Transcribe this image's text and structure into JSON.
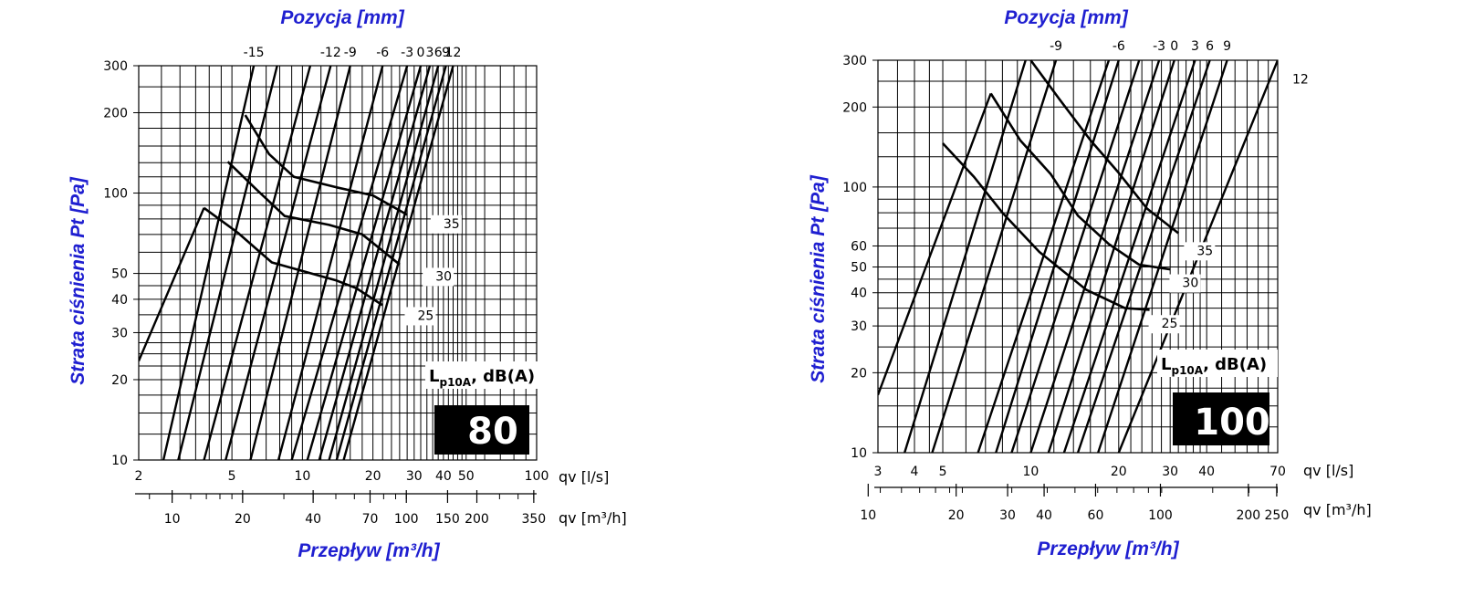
{
  "colors": {
    "title": "#1f1fd0",
    "lines": "#000000",
    "badge_bg": "#000000",
    "badge_text": "#ffffff"
  },
  "chart_data": [
    {
      "type": "line",
      "title": "Pozycja [mm]",
      "xlabel": "Przepływ [m³/h]",
      "ylabel": "Strata ciśnienia Pt [Pa]",
      "x_unit_ls": "qv [l/s]",
      "x_unit_m3h": "qv [m³/h]",
      "xlim_ls": [
        2,
        100
      ],
      "ylim": [
        10,
        300
      ],
      "x_scale": "log",
      "y_scale": "log",
      "grid": true,
      "x_ticks_ls": [
        "2",
        "5",
        "10",
        "20",
        "30",
        "40",
        "50",
        "100"
      ],
      "x_ticks_m3h": [
        "10",
        "20",
        "40",
        "70",
        "100",
        "150",
        "200",
        "350"
      ],
      "y_ticks": [
        "10",
        "20",
        "30",
        "40",
        "50",
        "100",
        "200",
        "300"
      ],
      "size": "80",
      "sound_label_main": "L",
      "sound_label_sub": "p10A",
      "sound_label_rest": ", dB(A)",
      "position_lines": [
        {
          "position": "-15",
          "x_at_y10": 2.55,
          "x_at_y300": 6.2,
          "label": true
        },
        {
          "position": "",
          "x_at_y10": 2.95,
          "x_at_y300": 7.8,
          "label": false
        },
        {
          "position": "",
          "x_at_y10": 3.8,
          "x_at_y300": 10.8,
          "label": false
        },
        {
          "position": "-12",
          "x_at_y10": 4.7,
          "x_at_y300": 13.2,
          "label": true
        },
        {
          "position": "-9",
          "x_at_y10": 6.0,
          "x_at_y300": 16.0,
          "label": true
        },
        {
          "position": "-6",
          "x_at_y10": 7.9,
          "x_at_y300": 22.0,
          "label": true
        },
        {
          "position": "-3",
          "x_at_y10": 9.0,
          "x_at_y300": 28.0,
          "label": true
        },
        {
          "position": "0",
          "x_at_y10": 10.5,
          "x_at_y300": 32.0,
          "label": true
        },
        {
          "position": "3",
          "x_at_y10": 11.8,
          "x_at_y300": 35.0,
          "label": true
        },
        {
          "position": "6",
          "x_at_y10": 13.0,
          "x_at_y300": 38.0,
          "label": true
        },
        {
          "position": "9",
          "x_at_y10": 14.0,
          "x_at_y300": 41.0,
          "label": true
        },
        {
          "position": "12",
          "x_at_y10": 15.0,
          "x_at_y300": 44.0,
          "label": true
        }
      ],
      "extra_line": {
        "x_start": 2.0,
        "y_start": 23.5,
        "x_end": 3.8,
        "y_end": 88
      },
      "sound_curves": [
        {
          "level": "35",
          "label_x": 40,
          "label_y": 74,
          "points": [
            [
              5.7,
              196
            ],
            [
              7.2,
              140
            ],
            [
              9.2,
              115
            ],
            [
              14,
              105
            ],
            [
              20,
              98
            ],
            [
              28,
              83
            ]
          ]
        },
        {
          "level": "30",
          "label_x": 37,
          "label_y": 47,
          "points": [
            [
              4.8,
              131
            ],
            [
              6.3,
              104
            ],
            [
              8.4,
              82
            ],
            [
              13,
              76
            ],
            [
              18,
              70
            ],
            [
              26,
              54
            ]
          ]
        },
        {
          "level": "25",
          "label_x": 31,
          "label_y": 33.5,
          "points": [
            [
              3.8,
              88
            ],
            [
              5.3,
              71
            ],
            [
              7.4,
              55
            ],
            [
              14,
              47
            ],
            [
              17,
              44
            ],
            [
              22,
              38
            ]
          ]
        }
      ]
    },
    {
      "type": "line",
      "title": "Pozycja [mm]",
      "xlabel": "Przepływ [m³/h]",
      "ylabel": "Strata ciśnienia Pt [Pa]",
      "x_unit_ls": "qv [l/s]",
      "x_unit_m3h": "qv [m³/h]",
      "xlim_ls": [
        3,
        70
      ],
      "ylim": [
        10,
        300
      ],
      "x_scale": "log",
      "y_scale": "log",
      "grid": true,
      "x_ticks_ls": [
        "3",
        "4",
        "5",
        "10",
        "20",
        "30",
        "40",
        "70"
      ],
      "x_ticks_m3h": [
        "10",
        "20",
        "30",
        "40",
        "60",
        "100",
        "200",
        "250"
      ],
      "y_ticks": [
        "10",
        "20",
        "30",
        "40",
        "50",
        "60",
        "100",
        "200",
        "300"
      ],
      "size": "100",
      "sound_label_main": "L",
      "sound_label_sub": "p10A",
      "sound_label_rest": ", dB(A)",
      "position_lines": [
        {
          "position": "",
          "x_at_y10": 3.7,
          "x_at_y300": 9.6,
          "label": false
        },
        {
          "position": "-9",
          "x_at_y10": 4.6,
          "x_at_y300": 12.2,
          "label": true
        },
        {
          "position": "",
          "x_at_y10": 6.6,
          "x_at_y300": 18.5,
          "label": false
        },
        {
          "position": "-6",
          "x_at_y10": 7.6,
          "x_at_y300": 20.0,
          "label": true
        },
        {
          "position": "",
          "x_at_y10": 8.6,
          "x_at_y300": 23.5,
          "label": false
        },
        {
          "position": "-3",
          "x_at_y10": 10.0,
          "x_at_y300": 27.5,
          "label": true
        },
        {
          "position": "0",
          "x_at_y10": 11.5,
          "x_at_y300": 31.0,
          "label": true
        },
        {
          "position": "3",
          "x_at_y10": 13.0,
          "x_at_y300": 36.5,
          "label": true
        },
        {
          "position": "6",
          "x_at_y10": 14.5,
          "x_at_y300": 41.0,
          "label": true
        },
        {
          "position": "9",
          "x_at_y10": 17.0,
          "x_at_y300": 47.0,
          "label": true
        },
        {
          "position": "12",
          "x_at_y10": 20.0,
          "x_at_y300": 70.0,
          "label": true
        }
      ],
      "extra_line": {
        "x_start": 3.0,
        "y_start": 16.5,
        "x_end": 7.3,
        "y_end": 225
      },
      "sound_curves": [
        {
          "level": "35",
          "label_x": 37,
          "label_y": 55.5,
          "points": [
            [
              10,
              300
            ],
            [
              12.5,
              215
            ],
            [
              16,
              150
            ],
            [
              20,
              113
            ],
            [
              25,
              83
            ],
            [
              32,
              67
            ]
          ]
        },
        {
          "level": "30",
          "label_x": 33,
          "label_y": 42,
          "points": [
            [
              7.3,
              225
            ],
            [
              9.2,
              150
            ],
            [
              11.7,
              112
            ],
            [
              14.5,
              78
            ],
            [
              18.5,
              61
            ],
            [
              23.5,
              51
            ],
            [
              30,
              49
            ]
          ]
        },
        {
          "level": "25",
          "label_x": 28,
          "label_y": 29.5,
          "points": [
            [
              5.0,
              146
            ],
            [
              6.4,
              109
            ],
            [
              8.0,
              80
            ],
            [
              10.7,
              57
            ],
            [
              15.5,
              41
            ],
            [
              21,
              35
            ],
            [
              25.5,
              34.5
            ]
          ]
        }
      ]
    }
  ]
}
